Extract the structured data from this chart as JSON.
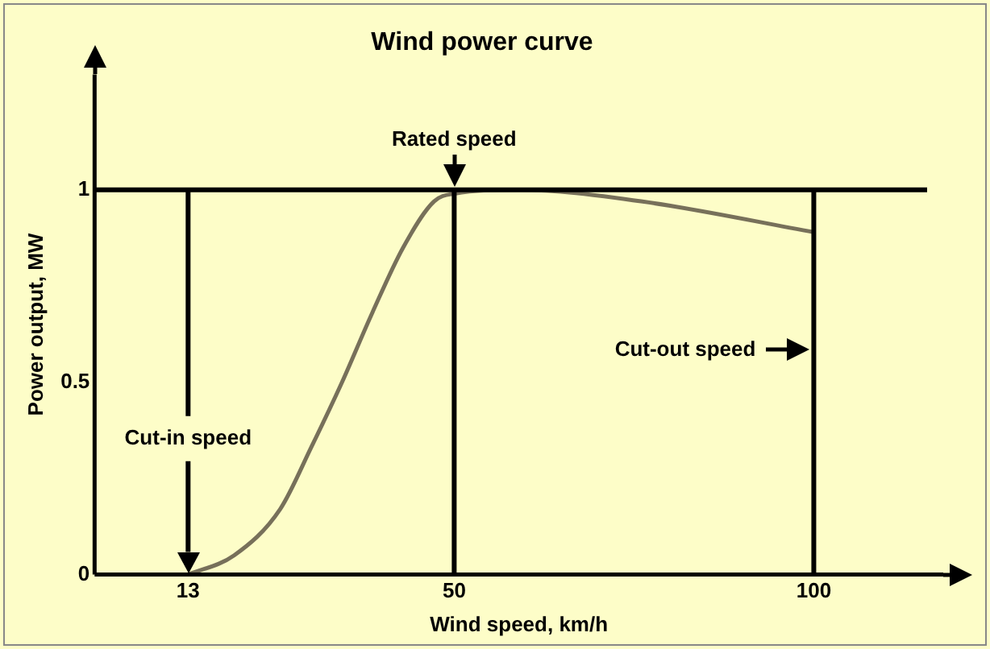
{
  "chart_data": {
    "type": "line",
    "title": "Wind power curve",
    "xlabel": "Wind speed, km/h",
    "ylabel": "Power output, MW",
    "x": [
      13,
      19.4,
      25.8,
      30.1,
      34.4,
      38.6,
      42.9,
      47.2,
      50,
      59,
      76,
      100
    ],
    "series": [
      {
        "color": "#77705a",
        "values": [
          0,
          0.05,
          0.17,
          0.33,
          0.5,
          0.68,
          0.85,
          0.97,
          0.99,
          1.0,
          0.97,
          0.89
        ]
      }
    ],
    "xlim": [
      0,
      118
    ],
    "xticks": [
      13,
      50,
      100
    ],
    "ylim": [
      0,
      1.3
    ],
    "yticks": [
      0,
      0.5,
      1
    ],
    "ref_lines": [
      {
        "axis": "y",
        "value": 1,
        "color": "#000000"
      },
      {
        "axis": "x",
        "value": 13,
        "label": "Cut-in speed",
        "color": "#000000"
      },
      {
        "axis": "x",
        "value": 50,
        "label": "Rated speed",
        "color": "#000000"
      },
      {
        "axis": "x",
        "value": 100,
        "label": "Cut-out speed",
        "color": "#000000"
      }
    ],
    "grid": false,
    "legend": false,
    "marker": "none",
    "line_style": "solid"
  }
}
